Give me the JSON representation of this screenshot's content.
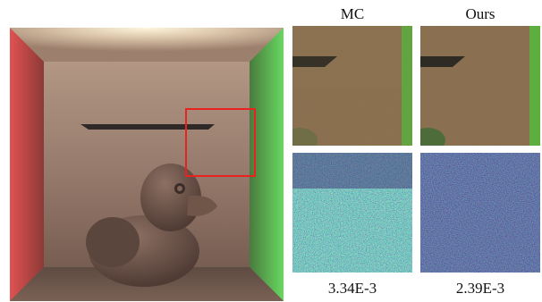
{
  "columns": [
    {
      "header": "MC",
      "metric": "3.34E-3"
    },
    {
      "header": "Ours",
      "metric": "2.39E-3"
    }
  ],
  "colors": {
    "highlight_box": "#e8231f",
    "left_wall": "#c83b3b",
    "right_wall": "#5fd05a",
    "ceiling_light": "#fff6dc",
    "error_low": "#3b1f6e",
    "error_high": "#fde725"
  }
}
